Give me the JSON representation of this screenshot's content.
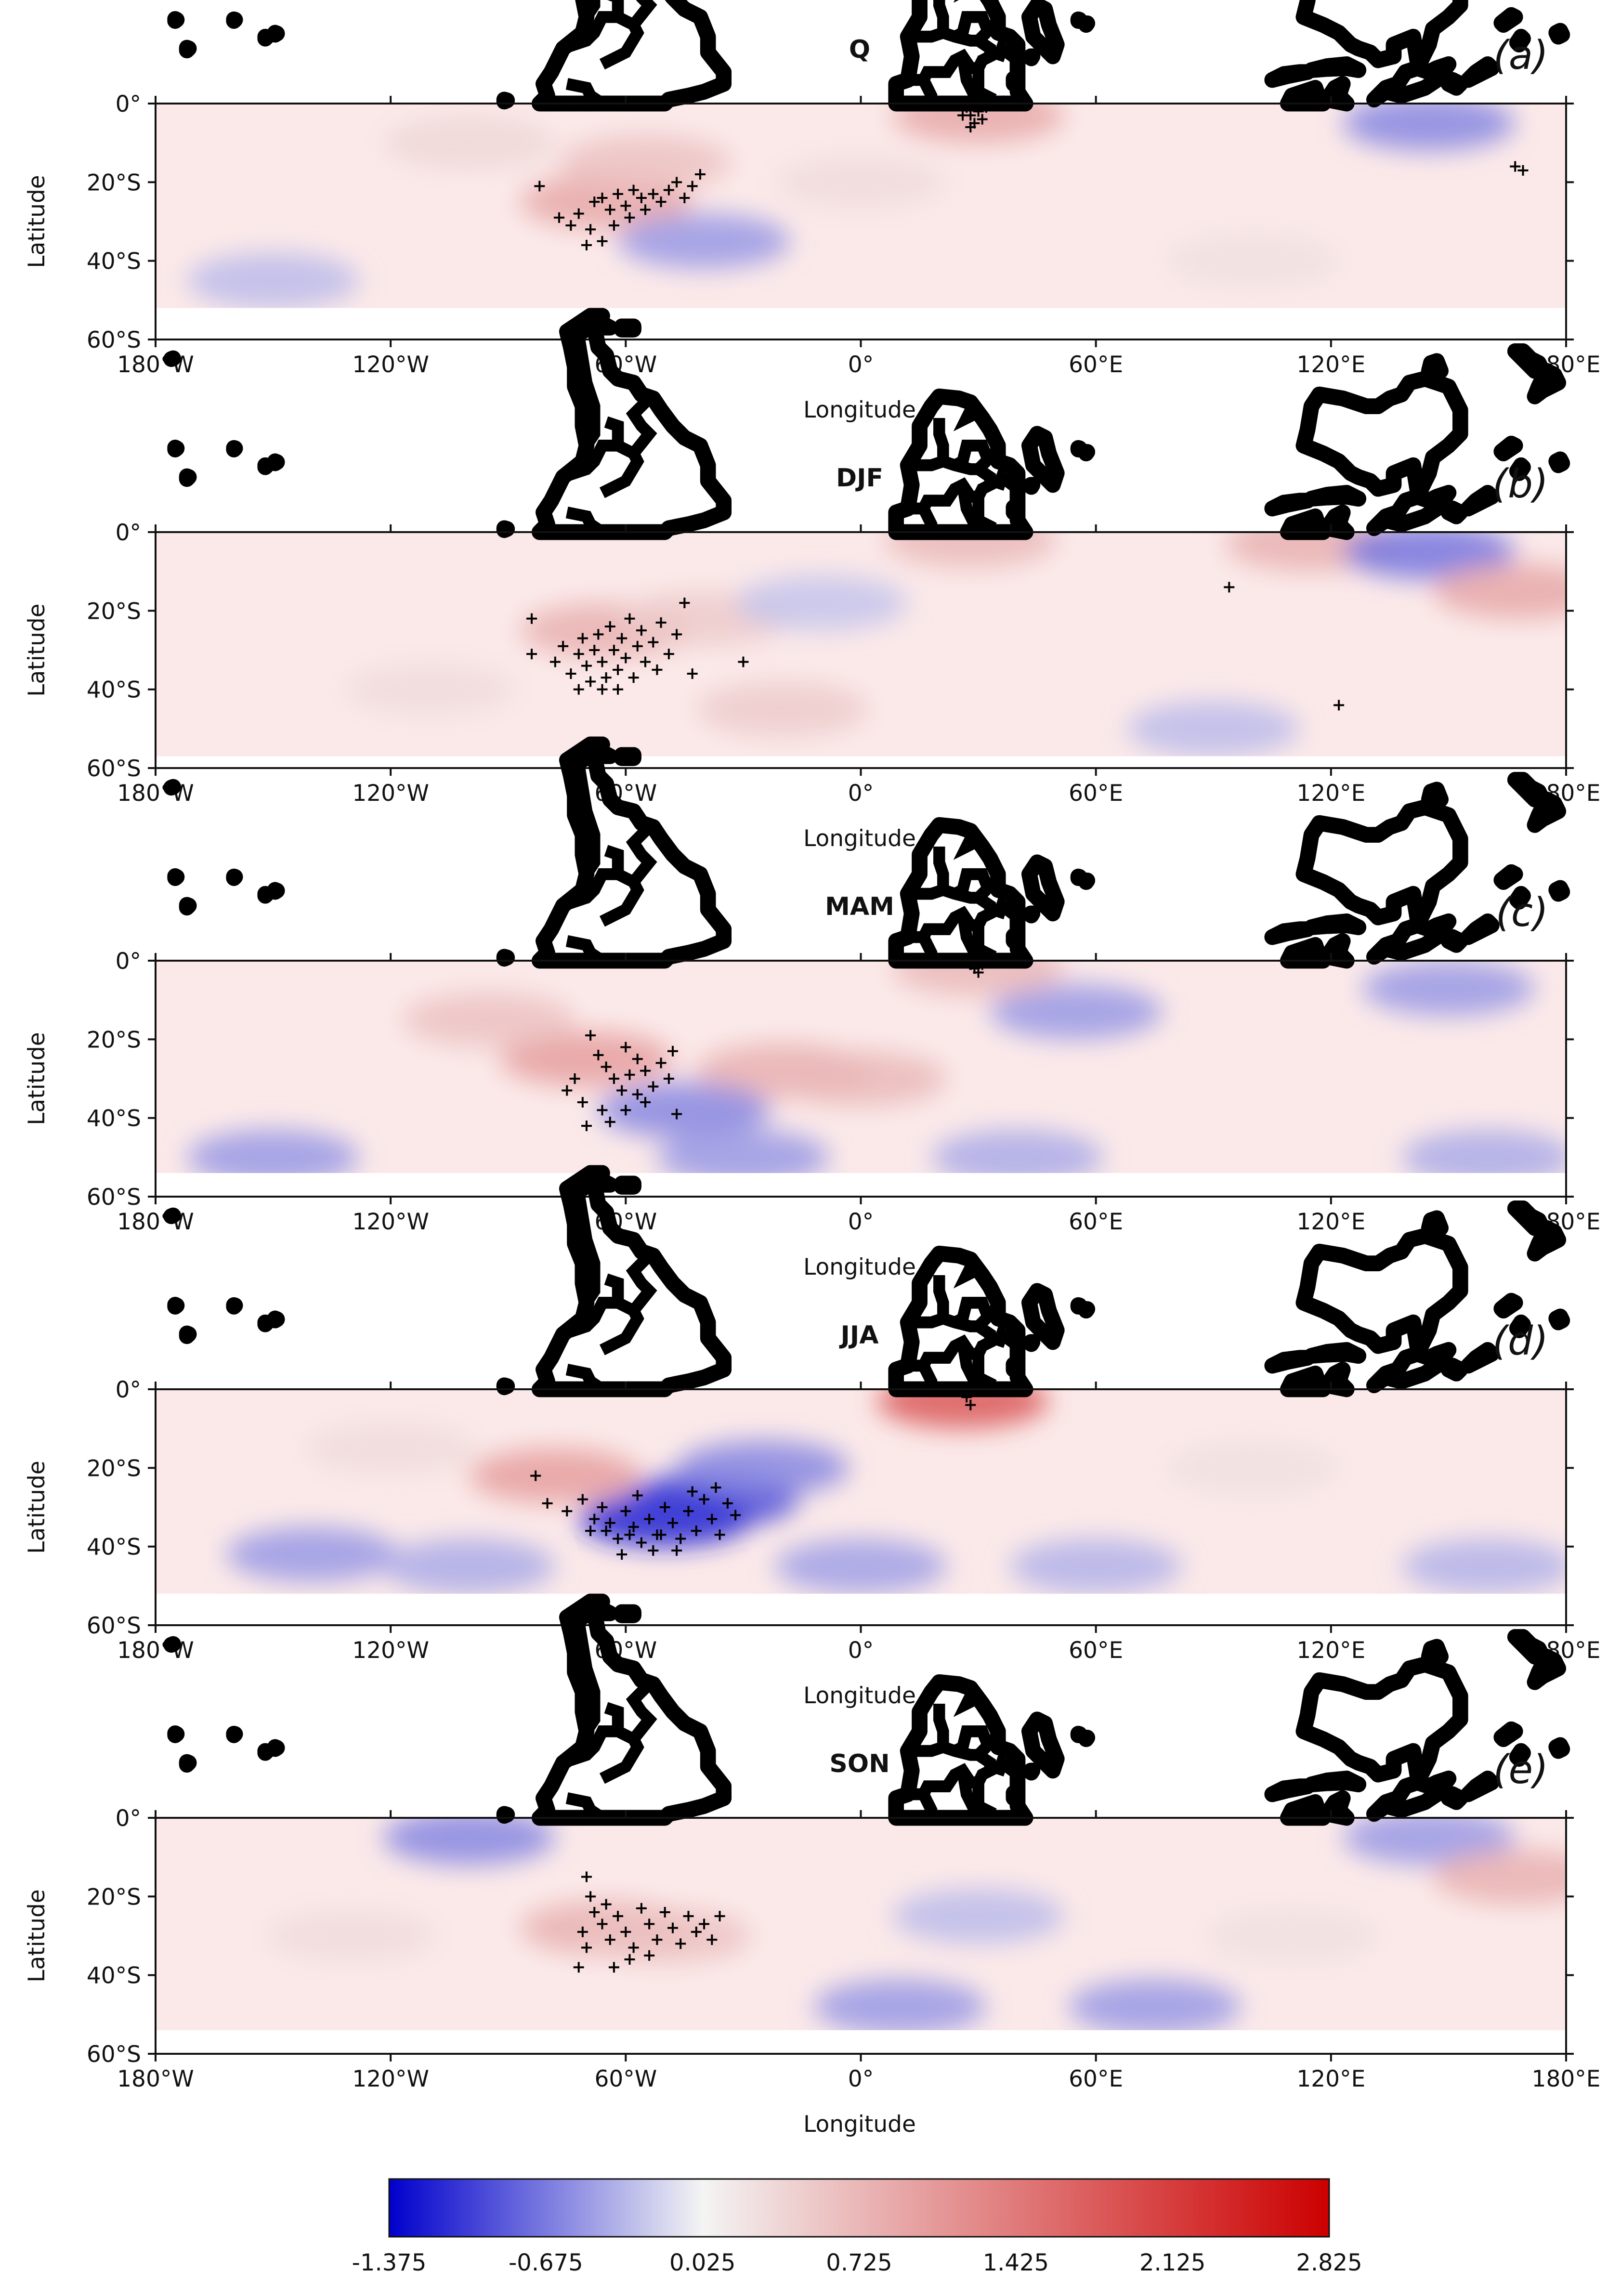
{
  "colors": {
    "negative": "#0000cc",
    "neutral": "#f4f4f4",
    "positive": "#cc0000",
    "coast": "#000000",
    "marker": "#000000"
  },
  "chart_data": [
    {
      "type": "heatmap",
      "title": "Q",
      "panel_letter": "(a)",
      "xlabel": "Longitude",
      "ylabel": "Latitude",
      "xlim": [
        -180,
        180
      ],
      "ylim": [
        -60,
        0
      ],
      "data_extent_lat": [
        -52,
        0
      ],
      "xticks": [
        "180°W",
        "120°W",
        "60°W",
        "0°",
        "60°E",
        "120°E",
        "180°E"
      ],
      "yticks": [
        "0°",
        "20°S",
        "40°S",
        "60°S"
      ],
      "anomaly_regions": [
        {
          "lon": -65,
          "lat": -25,
          "value": 0.9
        },
        {
          "lon": -55,
          "lat": -15,
          "value": 0.6
        },
        {
          "lon": -40,
          "lat": -35,
          "value": -0.5
        },
        {
          "lon": 30,
          "lat": -3,
          "value": 0.9
        },
        {
          "lon": 145,
          "lat": -5,
          "value": -0.6
        },
        {
          "lon": -150,
          "lat": -45,
          "value": -0.3
        },
        {
          "lon": 0,
          "lat": -20,
          "value": 0.3
        },
        {
          "lon": 100,
          "lat": -40,
          "value": 0.25
        },
        {
          "lon": -100,
          "lat": -10,
          "value": 0.35
        }
      ],
      "significant_points": [
        [
          -82,
          -21
        ],
        [
          -77,
          -29
        ],
        [
          -74,
          -31
        ],
        [
          -72,
          -28
        ],
        [
          -69,
          -32
        ],
        [
          -68,
          -25
        ],
        [
          -66,
          -24
        ],
        [
          -64,
          -27
        ],
        [
          -62,
          -23
        ],
        [
          -60,
          -26
        ],
        [
          -58,
          -22
        ],
        [
          -56,
          -24
        ],
        [
          -55,
          -27
        ],
        [
          -53,
          -23
        ],
        [
          -51,
          -25
        ],
        [
          -49,
          -22
        ],
        [
          -47,
          -20
        ],
        [
          -45,
          -24
        ],
        [
          -43,
          -21
        ],
        [
          -41,
          -18
        ],
        [
          -63,
          -31
        ],
        [
          -59,
          -29
        ],
        [
          -66,
          -35
        ],
        [
          -70,
          -36
        ],
        [
          27,
          -1
        ],
        [
          28,
          -3
        ],
        [
          30,
          -2
        ],
        [
          31,
          -4
        ],
        [
          29,
          -5
        ],
        [
          26,
          -3
        ],
        [
          32,
          -1
        ],
        [
          28,
          -6
        ],
        [
          167,
          -16
        ],
        [
          169,
          -17
        ]
      ]
    },
    {
      "type": "heatmap",
      "title": "DJF",
      "panel_letter": "(b)",
      "xlabel": "Longitude",
      "ylabel": "Latitude",
      "xlim": [
        -180,
        180
      ],
      "ylim": [
        -60,
        0
      ],
      "data_extent_lat": [
        -57,
        0
      ],
      "xticks": [
        "180°W",
        "120°W",
        "60°W",
        "0°",
        "60°E",
        "120°E",
        "180°E"
      ],
      "yticks": [
        "0°",
        "20°S",
        "40°S",
        "60°S"
      ],
      "anomaly_regions": [
        {
          "lon": -65,
          "lat": -25,
          "value": 0.8
        },
        {
          "lon": -40,
          "lat": -22,
          "value": 0.5
        },
        {
          "lon": -20,
          "lat": -45,
          "value": 0.5
        },
        {
          "lon": 28,
          "lat": -2,
          "value": 0.7
        },
        {
          "lon": 115,
          "lat": -3,
          "value": 0.8
        },
        {
          "lon": 145,
          "lat": -5,
          "value": -0.7
        },
        {
          "lon": 168,
          "lat": -15,
          "value": 0.9
        },
        {
          "lon": 90,
          "lat": -50,
          "value": -0.3
        },
        {
          "lon": -110,
          "lat": -40,
          "value": 0.3
        },
        {
          "lon": -10,
          "lat": -18,
          "value": -0.25
        }
      ],
      "significant_points": [
        [
          -84,
          -22
        ],
        [
          -84,
          -31
        ],
        [
          -78,
          -33
        ],
        [
          -76,
          -29
        ],
        [
          -74,
          -36
        ],
        [
          -72,
          -31
        ],
        [
          -71,
          -27
        ],
        [
          -70,
          -34
        ],
        [
          -69,
          -38
        ],
        [
          -68,
          -30
        ],
        [
          -67,
          -26
        ],
        [
          -66,
          -33
        ],
        [
          -65,
          -37
        ],
        [
          -64,
          -24
        ],
        [
          -63,
          -30
        ],
        [
          -62,
          -35
        ],
        [
          -61,
          -27
        ],
        [
          -60,
          -32
        ],
        [
          -59,
          -22
        ],
        [
          -58,
          -37
        ],
        [
          -57,
          -29
        ],
        [
          -56,
          -25
        ],
        [
          -55,
          -33
        ],
        [
          -53,
          -28
        ],
        [
          -52,
          -35
        ],
        [
          -51,
          -23
        ],
        [
          -49,
          -31
        ],
        [
          -47,
          -26
        ],
        [
          -45,
          -18
        ],
        [
          -43,
          -36
        ],
        [
          -66,
          -40
        ],
        [
          -72,
          -40
        ],
        [
          -62,
          -40
        ],
        [
          -30,
          -33
        ],
        [
          94,
          -14
        ],
        [
          122,
          -44
        ]
      ]
    },
    {
      "type": "heatmap",
      "title": "MAM",
      "panel_letter": "(c)",
      "xlabel": "Longitude",
      "ylabel": "Latitude",
      "xlim": [
        -180,
        180
      ],
      "ylim": [
        -60,
        0
      ],
      "data_extent_lat": [
        -54,
        0
      ],
      "xticks": [
        "180°W",
        "120°W",
        "60°W",
        "0°",
        "60°E",
        "120°E",
        "180°E"
      ],
      "yticks": [
        "0°",
        "20°S",
        "40°S",
        "60°S"
      ],
      "anomaly_regions": [
        {
          "lon": -70,
          "lat": -25,
          "value": 1.0
        },
        {
          "lon": -95,
          "lat": -15,
          "value": 0.6
        },
        {
          "lon": -20,
          "lat": -28,
          "value": 0.8
        },
        {
          "lon": 0,
          "lat": -30,
          "value": 0.7
        },
        {
          "lon": -45,
          "lat": -38,
          "value": -0.6
        },
        {
          "lon": -150,
          "lat": -50,
          "value": -0.5
        },
        {
          "lon": -30,
          "lat": -50,
          "value": -0.5
        },
        {
          "lon": 40,
          "lat": -50,
          "value": -0.4
        },
        {
          "lon": 160,
          "lat": -50,
          "value": -0.4
        },
        {
          "lon": 55,
          "lat": -13,
          "value": -0.5
        },
        {
          "lon": 30,
          "lat": -2,
          "value": 0.7
        },
        {
          "lon": 150,
          "lat": -7,
          "value": -0.5
        }
      ],
      "significant_points": [
        [
          -69,
          -19
        ],
        [
          -67,
          -24
        ],
        [
          -65,
          -27
        ],
        [
          -60,
          -22
        ],
        [
          -57,
          -25
        ],
        [
          -55,
          -28
        ],
        [
          -53,
          -32
        ],
        [
          -51,
          -26
        ],
        [
          -49,
          -30
        ],
        [
          -48,
          -23
        ],
        [
          -63,
          -30
        ],
        [
          -61,
          -33
        ],
        [
          -59,
          -29
        ],
        [
          -57,
          -34
        ],
        [
          -55,
          -36
        ],
        [
          -73,
          -30
        ],
        [
          -71,
          -36
        ],
        [
          -70,
          -42
        ],
        [
          -66,
          -38
        ],
        [
          -64,
          -41
        ],
        [
          -60,
          -38
        ],
        [
          -47,
          -39
        ],
        [
          -75,
          -33
        ],
        [
          28,
          -1
        ],
        [
          29,
          -2
        ],
        [
          30,
          -3
        ],
        [
          31,
          -1
        ]
      ]
    },
    {
      "type": "heatmap",
      "title": "JJA",
      "panel_letter": "(d)",
      "xlabel": "Longitude",
      "ylabel": "Latitude",
      "xlim": [
        -180,
        180
      ],
      "ylim": [
        -60,
        0
      ],
      "data_extent_lat": [
        -52,
        0
      ],
      "xticks": [
        "180°W",
        "120°W",
        "60°W",
        "0°",
        "60°E",
        "120°E",
        "180°E"
      ],
      "yticks": [
        "0°",
        "20°S",
        "40°S",
        "60°S"
      ],
      "anomaly_regions": [
        {
          "lon": -50,
          "lat": -33,
          "value": -1.2
        },
        {
          "lon": -38,
          "lat": -28,
          "value": -1.0
        },
        {
          "lon": -25,
          "lat": -20,
          "value": -0.6
        },
        {
          "lon": -140,
          "lat": -42,
          "value": -0.5
        },
        {
          "lon": -100,
          "lat": -45,
          "value": -0.4
        },
        {
          "lon": 0,
          "lat": -45,
          "value": -0.45
        },
        {
          "lon": 60,
          "lat": -45,
          "value": -0.35
        },
        {
          "lon": 160,
          "lat": -45,
          "value": -0.35
        },
        {
          "lon": -78,
          "lat": -22,
          "value": 1.0
        },
        {
          "lon": 26,
          "lat": -3,
          "value": 1.8
        },
        {
          "lon": -120,
          "lat": -15,
          "value": 0.3
        },
        {
          "lon": 100,
          "lat": -20,
          "value": 0.25
        }
      ],
      "significant_points": [
        [
          -83,
          -22
        ],
        [
          -80,
          -29
        ],
        [
          -75,
          -31
        ],
        [
          -71,
          -28
        ],
        [
          -68,
          -33
        ],
        [
          -66,
          -30
        ],
        [
          -64,
          -34
        ],
        [
          -62,
          -38
        ],
        [
          -60,
          -31
        ],
        [
          -58,
          -35
        ],
        [
          -56,
          -39
        ],
        [
          -54,
          -33
        ],
        [
          -52,
          -37
        ],
        [
          -50,
          -30
        ],
        [
          -48,
          -34
        ],
        [
          -46,
          -38
        ],
        [
          -44,
          -31
        ],
        [
          -42,
          -36
        ],
        [
          -40,
          -28
        ],
        [
          -38,
          -33
        ],
        [
          -36,
          -37
        ],
        [
          -34,
          -29
        ],
        [
          -32,
          -32
        ],
        [
          -61,
          -42
        ],
        [
          -57,
          -27
        ],
        [
          -53,
          -41
        ],
        [
          -47,
          -41
        ],
        [
          -65,
          -36
        ],
        [
          -59,
          -37
        ],
        [
          -51,
          -37
        ],
        [
          -43,
          -26
        ],
        [
          -37,
          -25
        ],
        [
          -69,
          -36
        ],
        [
          27,
          -2
        ],
        [
          28,
          -4
        ]
      ]
    },
    {
      "type": "heatmap",
      "title": "SON",
      "panel_letter": "(e)",
      "xlabel": "Longitude",
      "ylabel": "Latitude",
      "xlim": [
        -180,
        180
      ],
      "ylim": [
        -60,
        0
      ],
      "data_extent_lat": [
        -54,
        0
      ],
      "xticks": [
        "180°W",
        "120°W",
        "60°W",
        "0°",
        "60°E",
        "120°E",
        "180°E"
      ],
      "yticks": [
        "0°",
        "20°S",
        "40°S",
        "60°S"
      ],
      "anomaly_regions": [
        {
          "lon": -65,
          "lat": -28,
          "value": 0.8
        },
        {
          "lon": -50,
          "lat": -30,
          "value": 0.6
        },
        {
          "lon": -100,
          "lat": -5,
          "value": -0.6
        },
        {
          "lon": 10,
          "lat": -48,
          "value": -0.5
        },
        {
          "lon": 75,
          "lat": -48,
          "value": -0.5
        },
        {
          "lon": -130,
          "lat": -30,
          "value": 0.3
        },
        {
          "lon": 145,
          "lat": -5,
          "value": -0.5
        },
        {
          "lon": 168,
          "lat": -15,
          "value": 0.8
        },
        {
          "lon": 30,
          "lat": -25,
          "value": -0.3
        },
        {
          "lon": 110,
          "lat": -30,
          "value": 0.25
        }
      ],
      "significant_points": [
        [
          -70,
          -15
        ],
        [
          -69,
          -20
        ],
        [
          -68,
          -24
        ],
        [
          -66,
          -27
        ],
        [
          -65,
          -22
        ],
        [
          -64,
          -31
        ],
        [
          -62,
          -25
        ],
        [
          -60,
          -29
        ],
        [
          -58,
          -33
        ],
        [
          -56,
          -23
        ],
        [
          -54,
          -27
        ],
        [
          -52,
          -31
        ],
        [
          -50,
          -24
        ],
        [
          -48,
          -28
        ],
        [
          -46,
          -32
        ],
        [
          -44,
          -25
        ],
        [
          -42,
          -29
        ],
        [
          -40,
          -27
        ],
        [
          -38,
          -31
        ],
        [
          -36,
          -25
        ],
        [
          -71,
          -29
        ],
        [
          -72,
          -38
        ],
        [
          -63,
          -38
        ],
        [
          -59,
          -36
        ],
        [
          -54,
          -35
        ],
        [
          -70,
          -33
        ]
      ]
    }
  ],
  "colorbar": {
    "min": -1.375,
    "max": 2.825,
    "tick_labels": [
      "-1.375",
      "-0.675",
      "0.025",
      "0.725",
      "1.425",
      "2.125",
      "2.825"
    ]
  }
}
